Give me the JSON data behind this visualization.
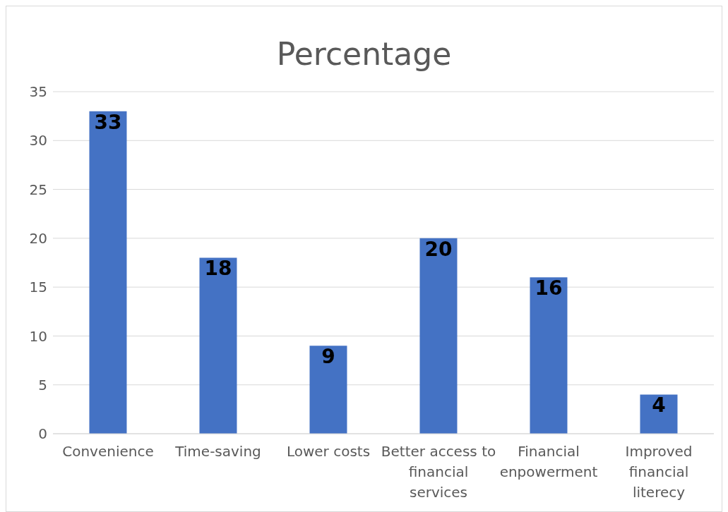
{
  "chart_data": {
    "type": "bar",
    "title": "Percentage",
    "categories": [
      "Convenience",
      "Time-saving",
      "Lower costs",
      "Better access to financial services",
      "Financial enpowerment",
      "Improved financial literecy"
    ],
    "values": [
      33,
      18,
      9,
      20,
      16,
      4
    ],
    "color": "#4472c4",
    "ylim": [
      0,
      35
    ],
    "yticks": [
      0,
      5,
      10,
      15,
      20,
      25,
      30,
      35
    ],
    "grid": "y",
    "data_labels": true
  }
}
